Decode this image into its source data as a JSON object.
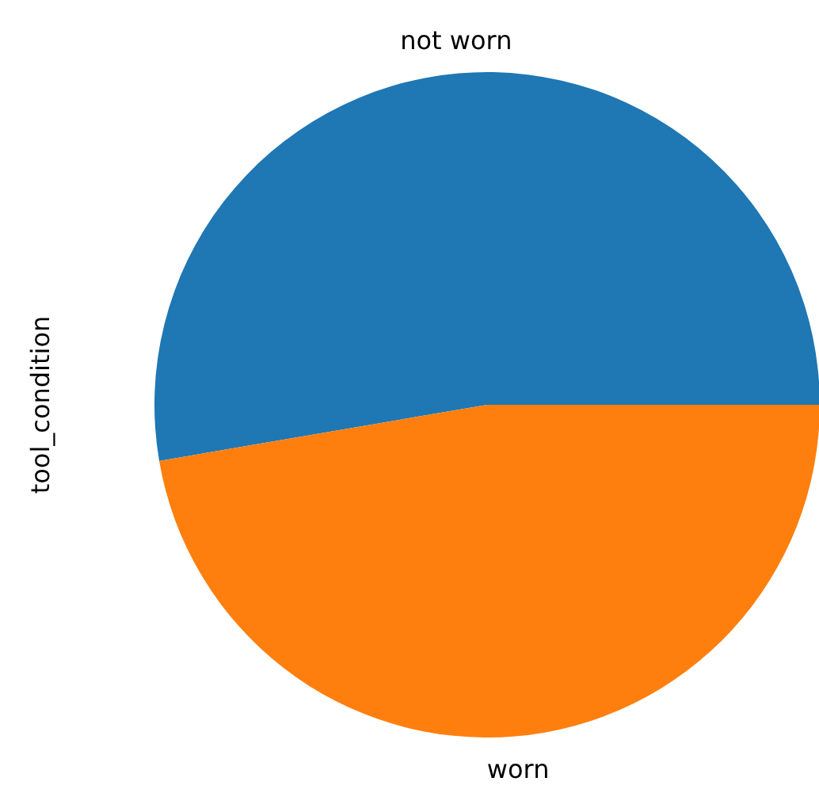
{
  "chart_data": {
    "type": "pie",
    "ylabel": "tool_condition",
    "categories": [
      "not worn",
      "worn"
    ],
    "values": [
      52.7,
      47.3
    ],
    "colors": [
      "#1f77b4",
      "#ff7f0e"
    ]
  }
}
